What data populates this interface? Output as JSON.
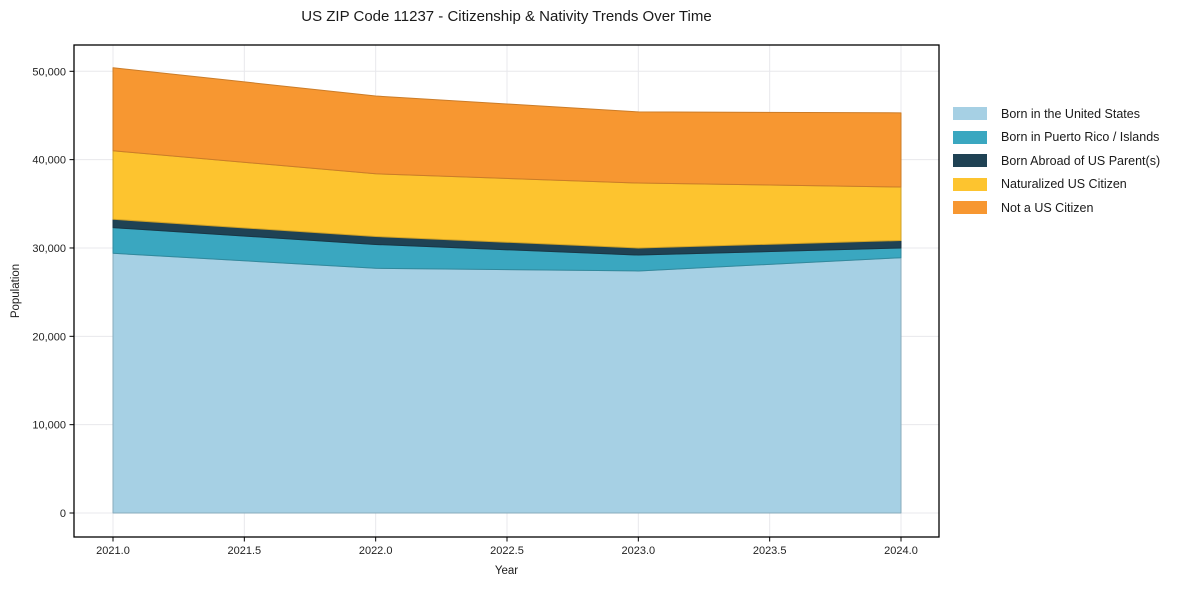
{
  "chart_data": {
    "type": "area",
    "stacked": true,
    "title": "US ZIP Code 11237 - Citizenship & Nativity Trends Over Time",
    "xlabel": "Year",
    "ylabel": "Population",
    "grid": true,
    "legend_position": "right-outside",
    "x": [
      2021,
      2022,
      2023,
      2024
    ],
    "xlim": [
      2021,
      2024
    ],
    "ylim": [
      0,
      50000
    ],
    "x_ticks": [
      2021.0,
      2021.5,
      2022.0,
      2022.5,
      2023.0,
      2023.5,
      2024.0
    ],
    "x_tick_labels": [
      "2021.0",
      "2021.5",
      "2022.0",
      "2022.5",
      "2023.0",
      "2023.5",
      "2024.0"
    ],
    "y_ticks": [
      0,
      10000,
      20000,
      30000,
      40000,
      50000
    ],
    "y_tick_labels": [
      "0",
      "10,000",
      "20,000",
      "30,000",
      "40,000",
      "50,000"
    ],
    "series": [
      {
        "name": "Born in the United States",
        "color": "#a6d0e4",
        "values": [
          29400,
          27700,
          27400,
          28900
        ]
      },
      {
        "name": "Born in Puerto Rico / Islands",
        "color": "#3aa7c0",
        "values": [
          2900,
          2700,
          1800,
          1100
        ]
      },
      {
        "name": "Born Abroad of US Parent(s)",
        "color": "#1f4254",
        "values": [
          950,
          900,
          800,
          850
        ]
      },
      {
        "name": "Naturalized US Citizen",
        "color": "#fdc42f",
        "values": [
          7750,
          7100,
          7350,
          6050
        ]
      },
      {
        "name": "Not a US Citizen",
        "color": "#f79731",
        "values": [
          9400,
          8800,
          8050,
          8400
        ]
      }
    ],
    "stacked_totals": [
      50400,
      47200,
      45400,
      45300
    ],
    "colors": {
      "background": "#ffffff",
      "gridline": "#e8e8ec",
      "axis_frame": "#000000",
      "text": "#1a1a1a"
    }
  }
}
